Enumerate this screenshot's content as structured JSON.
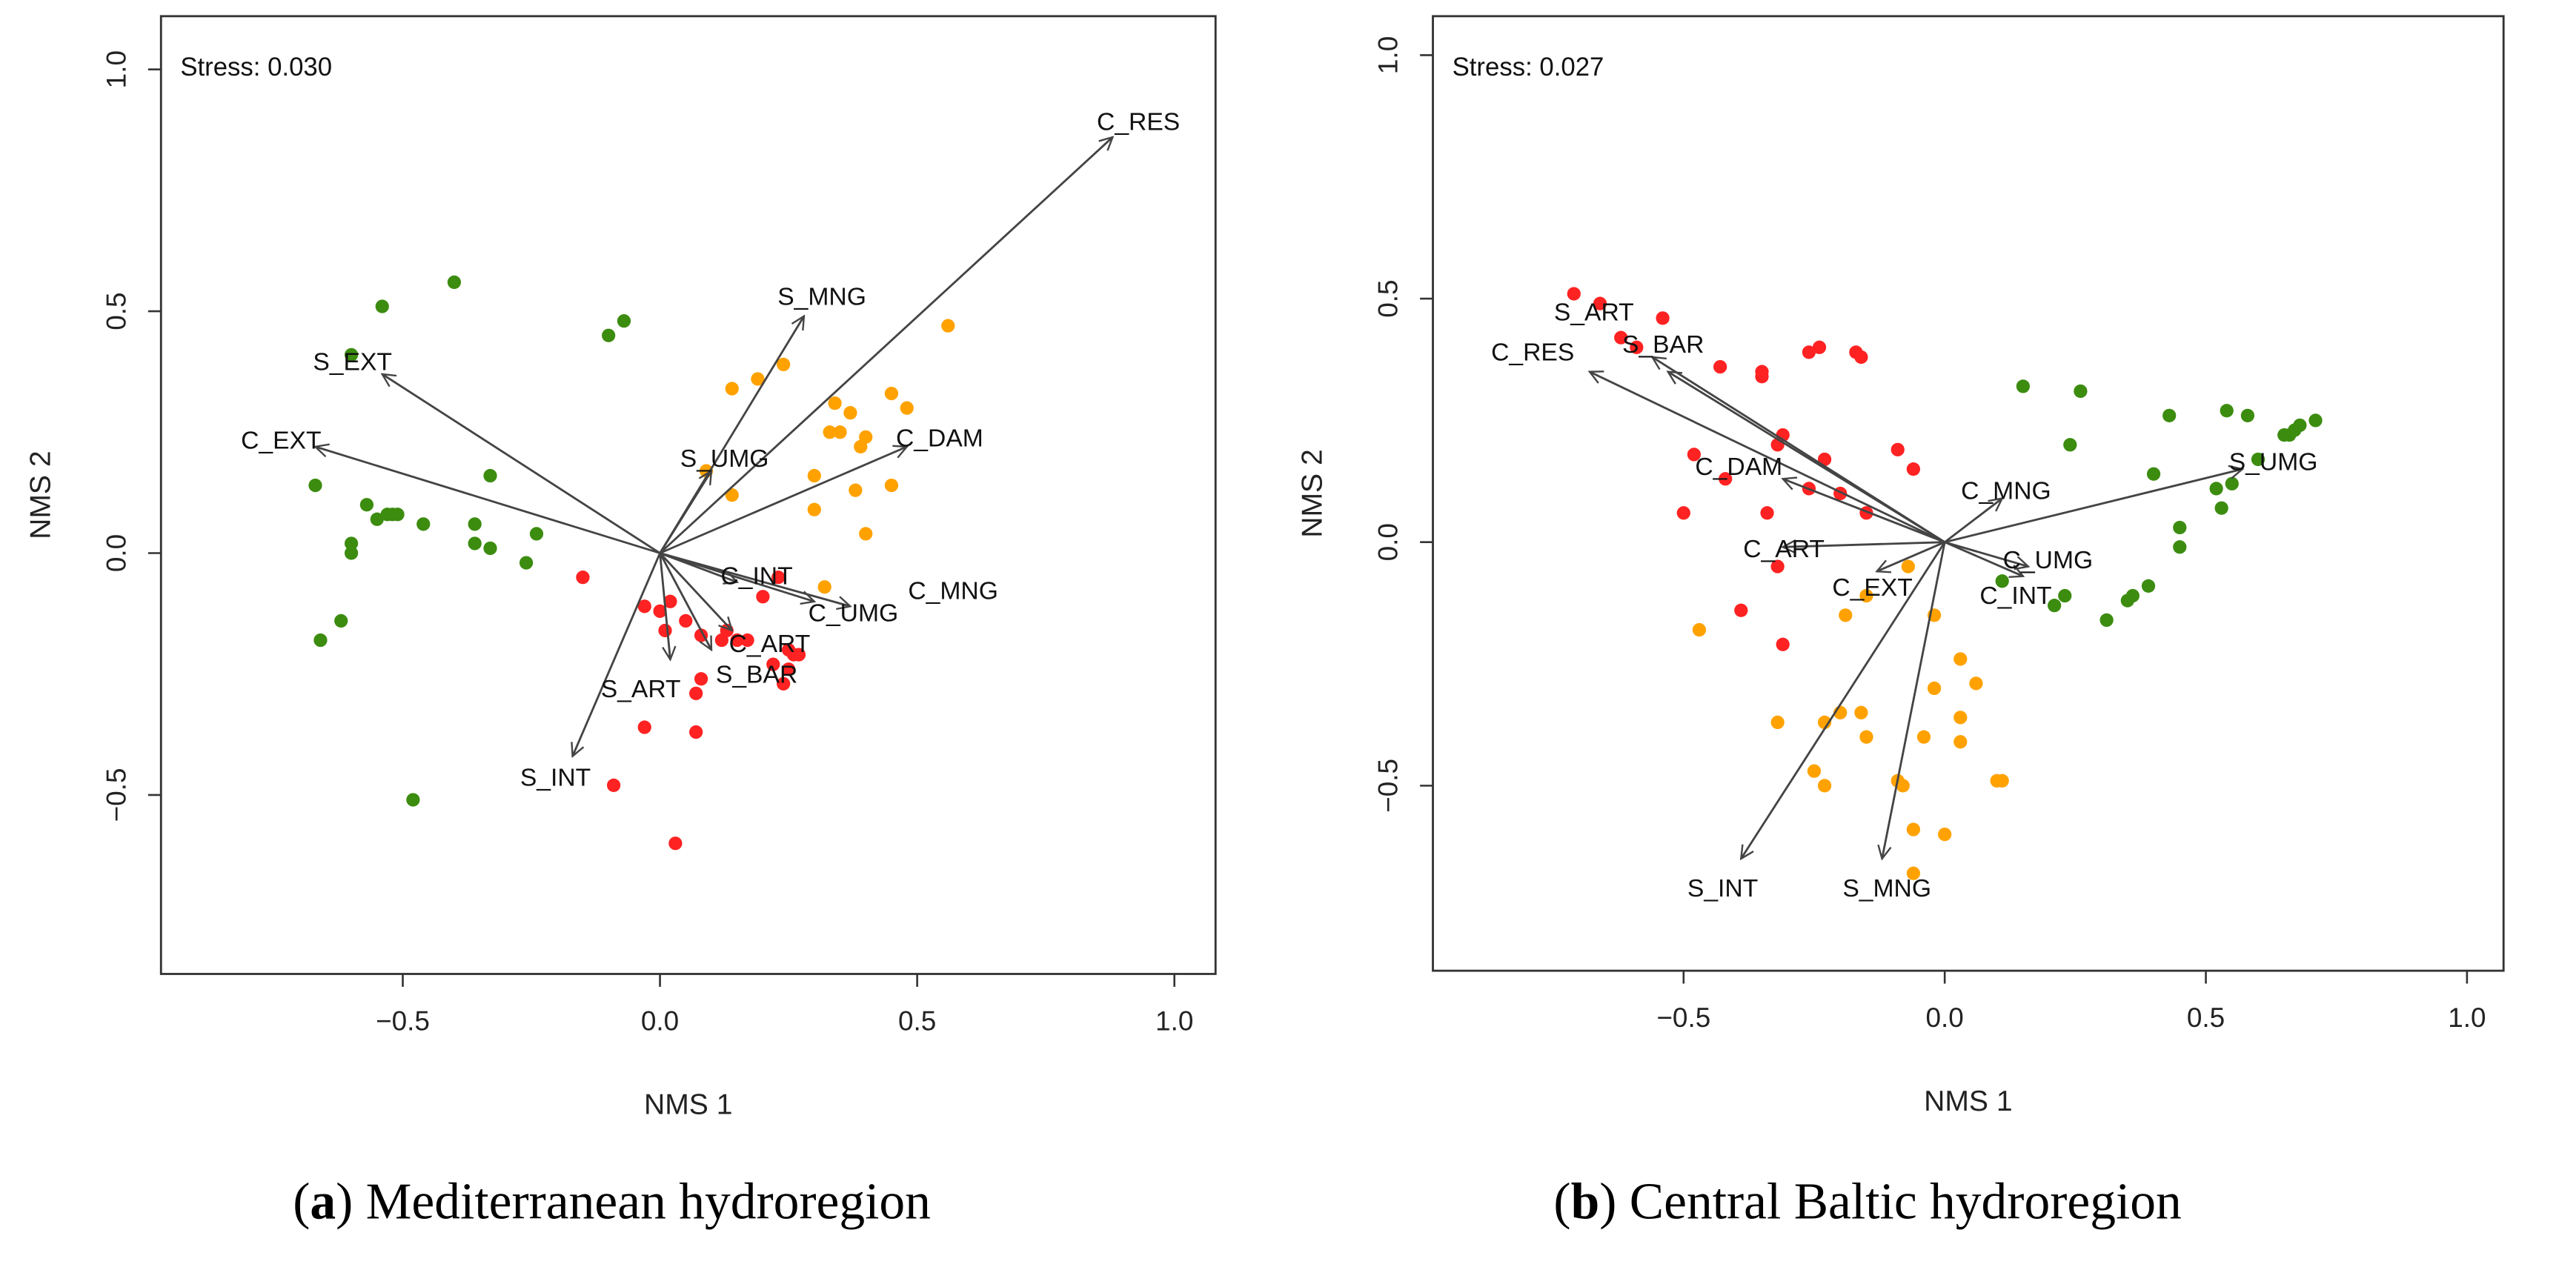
{
  "colors": {
    "green": "#3c8c10",
    "orange": "#ffa200",
    "red": "#ff2222",
    "arrow": "#444444"
  },
  "chart_data": [
    {
      "type": "scatter",
      "title": "",
      "caption_letter": "a",
      "caption_text": "Mediterranean hydroregion",
      "stress_label": "Stress: 0.030",
      "xlabel": "NMS 1",
      "ylabel": "NMS 2",
      "xlim": [
        -0.97,
        1.08
      ],
      "ylim": [
        -0.87,
        1.11
      ],
      "xticks": [
        -0.5,
        0.0,
        0.5,
        1.0
      ],
      "xtick_labels": [
        "−0.5",
        "0.0",
        "0.5",
        "1.0"
      ],
      "yticks": [
        -0.5,
        0.0,
        0.5,
        1.0
      ],
      "ytick_labels": [
        "−0.5",
        "0.0",
        "0.5",
        "1.0"
      ],
      "series": [
        {
          "name": "green",
          "color": "#3c8c10",
          "points": [
            [
              -0.54,
              0.51
            ],
            [
              -0.4,
              0.56
            ],
            [
              -0.1,
              0.45
            ],
            [
              -0.07,
              0.48
            ],
            [
              -0.6,
              0.41
            ],
            [
              -0.33,
              0.16
            ],
            [
              -0.67,
              0.14
            ],
            [
              -0.57,
              0.1
            ],
            [
              -0.55,
              0.07
            ],
            [
              -0.53,
              0.08
            ],
            [
              -0.51,
              0.08
            ],
            [
              -0.52,
              0.08
            ],
            [
              -0.46,
              0.06
            ],
            [
              -0.36,
              0.06
            ],
            [
              -0.6,
              0.02
            ],
            [
              -0.6,
              0.0
            ],
            [
              -0.36,
              0.02
            ],
            [
              -0.33,
              0.01
            ],
            [
              -0.24,
              0.04
            ],
            [
              -0.26,
              -0.02
            ],
            [
              -0.62,
              -0.14
            ],
            [
              -0.66,
              -0.18
            ],
            [
              -0.48,
              -0.51
            ]
          ]
        },
        {
          "name": "orange",
          "color": "#ffa200",
          "points": [
            [
              0.56,
              0.47
            ],
            [
              0.24,
              0.39
            ],
            [
              0.19,
              0.36
            ],
            [
              0.14,
              0.34
            ],
            [
              0.34,
              0.31
            ],
            [
              0.37,
              0.29
            ],
            [
              0.45,
              0.33
            ],
            [
              0.48,
              0.3
            ],
            [
              0.33,
              0.25
            ],
            [
              0.35,
              0.25
            ],
            [
              0.4,
              0.24
            ],
            [
              0.39,
              0.22
            ],
            [
              0.3,
              0.16
            ],
            [
              0.09,
              0.17
            ],
            [
              0.14,
              0.12
            ],
            [
              0.38,
              0.13
            ],
            [
              0.45,
              0.14
            ],
            [
              0.3,
              0.09
            ],
            [
              0.4,
              0.04
            ],
            [
              0.32,
              -0.07
            ]
          ]
        },
        {
          "name": "red",
          "color": "#ff2222",
          "points": [
            [
              -0.15,
              -0.05
            ],
            [
              0.23,
              -0.05
            ],
            [
              0.2,
              -0.09
            ],
            [
              -0.03,
              -0.11
            ],
            [
              0.0,
              -0.12
            ],
            [
              0.02,
              -0.1
            ],
            [
              0.01,
              -0.16
            ],
            [
              0.05,
              -0.14
            ],
            [
              0.08,
              -0.17
            ],
            [
              0.12,
              -0.18
            ],
            [
              0.13,
              -0.16
            ],
            [
              0.15,
              -0.18
            ],
            [
              0.17,
              -0.18
            ],
            [
              0.25,
              -0.2
            ],
            [
              0.26,
              -0.21
            ],
            [
              0.27,
              -0.21
            ],
            [
              0.22,
              -0.23
            ],
            [
              0.25,
              -0.24
            ],
            [
              0.08,
              -0.26
            ],
            [
              0.24,
              -0.27
            ],
            [
              0.07,
              -0.29
            ],
            [
              -0.03,
              -0.36
            ],
            [
              0.07,
              -0.37
            ],
            [
              -0.09,
              -0.48
            ],
            [
              0.03,
              -0.6
            ]
          ]
        }
      ],
      "vectors": [
        {
          "label": "C_RES",
          "x": 0.88,
          "y": 0.86
        },
        {
          "label": "S_MNG",
          "x": 0.28,
          "y": 0.49
        },
        {
          "label": "S_EXT",
          "x": -0.54,
          "y": 0.37
        },
        {
          "label": "C_EXT",
          "x": -0.67,
          "y": 0.22
        },
        {
          "label": "C_DAM",
          "x": 0.48,
          "y": 0.22
        },
        {
          "label": "S_UMG",
          "x": 0.1,
          "y": 0.17
        },
        {
          "label": "C_INT",
          "x": 0.15,
          "y": -0.06
        },
        {
          "label": "C_UMG",
          "x": 0.3,
          "y": -0.1
        },
        {
          "label": "C_MNG",
          "x": 0.37,
          "y": -0.11
        },
        {
          "label": "C_ART",
          "x": 0.14,
          "y": -0.16
        },
        {
          "label": "S_BAR",
          "x": 0.1,
          "y": -0.2
        },
        {
          "label": "S_ART",
          "x": 0.02,
          "y": -0.22
        },
        {
          "label": "S_INT",
          "x": -0.17,
          "y": -0.42
        }
      ]
    },
    {
      "type": "scatter",
      "title": "",
      "caption_letter": "b",
      "caption_text": "Central Baltic hydroregion",
      "stress_label": "Stress: 0.027",
      "xlabel": "NMS 1",
      "ylabel": "NMS 2",
      "xlim": [
        -0.98,
        1.07
      ],
      "ylim": [
        -0.88,
        1.08
      ],
      "xticks": [
        -0.5,
        0.0,
        0.5,
        1.0
      ],
      "xtick_labels": [
        "−0.5",
        "0.0",
        "0.5",
        "1.0"
      ],
      "yticks": [
        -0.5,
        0.0,
        0.5,
        1.0
      ],
      "ytick_labels": [
        "−0.5",
        "0.0",
        "0.5",
        "1.0"
      ],
      "series": [
        {
          "name": "red",
          "color": "#ff2222",
          "points": [
            [
              -0.71,
              0.51
            ],
            [
              -0.66,
              0.49
            ],
            [
              -0.54,
              0.46
            ],
            [
              -0.62,
              0.42
            ],
            [
              -0.59,
              0.4
            ],
            [
              -0.26,
              0.39
            ],
            [
              -0.24,
              0.4
            ],
            [
              -0.17,
              0.39
            ],
            [
              -0.16,
              0.38
            ],
            [
              -0.43,
              0.36
            ],
            [
              -0.35,
              0.35
            ],
            [
              -0.35,
              0.34
            ],
            [
              -0.31,
              0.22
            ],
            [
              -0.32,
              0.2
            ],
            [
              -0.48,
              0.18
            ],
            [
              -0.42,
              0.13
            ],
            [
              -0.23,
              0.17
            ],
            [
              -0.09,
              0.19
            ],
            [
              -0.06,
              0.15
            ],
            [
              -0.26,
              0.11
            ],
            [
              -0.2,
              0.1
            ],
            [
              -0.15,
              0.06
            ],
            [
              -0.34,
              0.06
            ],
            [
              -0.5,
              0.06
            ],
            [
              -0.32,
              -0.05
            ],
            [
              -0.39,
              -0.14
            ],
            [
              -0.31,
              -0.21
            ]
          ]
        },
        {
          "name": "green",
          "color": "#3c8c10",
          "points": [
            [
              0.15,
              0.32
            ],
            [
              0.26,
              0.31
            ],
            [
              0.24,
              0.2
            ],
            [
              0.43,
              0.26
            ],
            [
              0.54,
              0.27
            ],
            [
              0.58,
              0.26
            ],
            [
              0.65,
              0.22
            ],
            [
              0.66,
              0.22
            ],
            [
              0.67,
              0.23
            ],
            [
              0.68,
              0.24
            ],
            [
              0.71,
              0.25
            ],
            [
              0.6,
              0.17
            ],
            [
              0.55,
              0.12
            ],
            [
              0.52,
              0.11
            ],
            [
              0.4,
              0.14
            ],
            [
              0.53,
              0.07
            ],
            [
              0.45,
              0.03
            ],
            [
              0.45,
              -0.01
            ],
            [
              0.11,
              -0.08
            ],
            [
              0.39,
              -0.09
            ],
            [
              0.36,
              -0.11
            ],
            [
              0.35,
              -0.12
            ],
            [
              0.23,
              -0.11
            ],
            [
              0.21,
              -0.13
            ],
            [
              0.31,
              -0.16
            ]
          ]
        },
        {
          "name": "orange",
          "color": "#ffa200",
          "points": [
            [
              -0.07,
              -0.05
            ],
            [
              -0.15,
              -0.11
            ],
            [
              -0.19,
              -0.15
            ],
            [
              -0.02,
              -0.15
            ],
            [
              -0.47,
              -0.18
            ],
            [
              0.03,
              -0.24
            ],
            [
              0.06,
              -0.29
            ],
            [
              -0.02,
              -0.3
            ],
            [
              -0.2,
              -0.35
            ],
            [
              -0.16,
              -0.35
            ],
            [
              -0.32,
              -0.37
            ],
            [
              -0.23,
              -0.37
            ],
            [
              -0.15,
              -0.4
            ],
            [
              -0.04,
              -0.4
            ],
            [
              0.03,
              -0.36
            ],
            [
              0.03,
              -0.41
            ],
            [
              -0.25,
              -0.47
            ],
            [
              -0.23,
              -0.5
            ],
            [
              -0.09,
              -0.49
            ],
            [
              -0.08,
              -0.5
            ],
            [
              0.1,
              -0.49
            ],
            [
              0.11,
              -0.49
            ],
            [
              -0.06,
              -0.59
            ],
            [
              0.0,
              -0.6
            ],
            [
              -0.06,
              -0.68
            ]
          ]
        }
      ],
      "vectors": [
        {
          "label": "C_RES",
          "x": -0.68,
          "y": 0.35
        },
        {
          "label": "S_ART",
          "x": -0.56,
          "y": 0.38
        },
        {
          "label": "S_BAR",
          "x": -0.53,
          "y": 0.35
        },
        {
          "label": "C_DAM",
          "x": -0.31,
          "y": 0.13
        },
        {
          "label": "C_ART",
          "x": -0.31,
          "y": -0.01
        },
        {
          "label": "C_EXT",
          "x": -0.13,
          "y": -0.06
        },
        {
          "label": "C_MNG",
          "x": 0.11,
          "y": 0.09
        },
        {
          "label": "S_UMG",
          "x": 0.57,
          "y": 0.15
        },
        {
          "label": "C_UMG",
          "x": 0.16,
          "y": -0.05
        },
        {
          "label": "C_INT",
          "x": 0.15,
          "y": -0.07
        },
        {
          "label": "S_INT",
          "x": -0.39,
          "y": -0.65
        },
        {
          "label": "S_MNG",
          "x": -0.12,
          "y": -0.65
        }
      ]
    }
  ]
}
